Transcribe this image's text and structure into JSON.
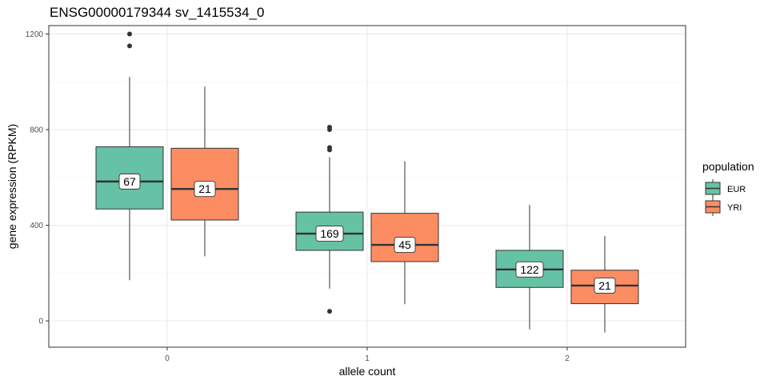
{
  "chart_data": {
    "type": "boxplot",
    "title": "ENSG00000179344 sv_1415534_0",
    "xlabel": "allele count",
    "ylabel": "gene expression (RPKM)",
    "categories": [
      "0",
      "1",
      "2"
    ],
    "y_ticks": [
      0,
      400,
      800,
      1200
    ],
    "y_tick_labels": [
      "0",
      "400",
      "800",
      "1200"
    ],
    "ylim": [
      -110,
      1235
    ],
    "grid": true,
    "legend": {
      "title": "population",
      "position": "right"
    },
    "series": [
      {
        "name": "EUR",
        "color": "#66c2a5",
        "boxes": [
          {
            "category": "0",
            "min": 170,
            "q1": 468,
            "median": 583,
            "q3": 728,
            "max": 1020,
            "outliers": [
              1150,
              1200
            ],
            "n_label": "67"
          },
          {
            "category": "1",
            "min": 135,
            "q1": 295,
            "median": 365,
            "q3": 455,
            "max": 685,
            "outliers": [
              40,
              715,
              725,
              800,
              810
            ],
            "n_label": "169"
          },
          {
            "category": "2",
            "min": -35,
            "q1": 140,
            "median": 215,
            "q3": 295,
            "max": 485,
            "outliers": [],
            "n_label": "122"
          }
        ]
      },
      {
        "name": "YRI",
        "color": "#fc8d62",
        "boxes": [
          {
            "category": "0",
            "min": 270,
            "q1": 422,
            "median": 552,
            "q3": 722,
            "max": 980,
            "outliers": [],
            "n_label": "21"
          },
          {
            "category": "1",
            "min": 70,
            "q1": 248,
            "median": 318,
            "q3": 450,
            "max": 668,
            "outliers": [],
            "n_label": "45"
          },
          {
            "category": "2",
            "min": -48,
            "q1": 72,
            "median": 148,
            "q3": 212,
            "max": 355,
            "outliers": [],
            "n_label": "21"
          }
        ]
      }
    ]
  }
}
